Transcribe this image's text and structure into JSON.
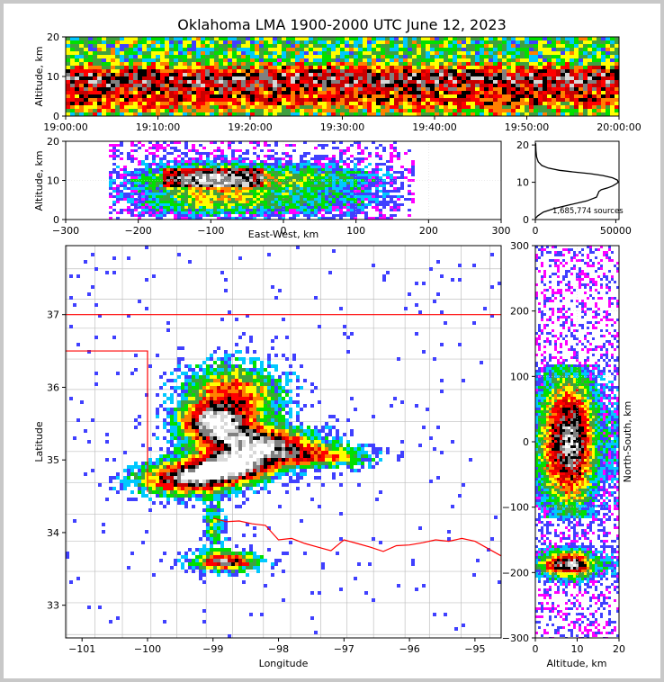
{
  "title": "Oklahoma LMA 1900-2000 UTC June 12, 2023",
  "colors": {
    "density_ramp": [
      "#ff00ff",
      "#4040ff",
      "#00c8ff",
      "#00e000",
      "#40a040",
      "#ffff00",
      "#ff8000",
      "#ff0000",
      "#c80000",
      "#000000",
      "#808080",
      "#d8d8d8",
      "#ffffff"
    ],
    "state_border": "#ff0000",
    "county_border": "#c0c0c0"
  },
  "chart_data": [
    {
      "name": "time-altitude",
      "type": "heatmap",
      "ylabel": "Altitude, km",
      "xlim": [
        "19:00:00",
        "20:00:00"
      ],
      "ylim": [
        0,
        20
      ],
      "xticks": [
        "19:00:00",
        "19:10:00",
        "19:20:00",
        "19:30:00",
        "19:40:00",
        "19:50:00",
        "20:00:00"
      ],
      "yticks": [
        "0",
        "10",
        "20"
      ]
    },
    {
      "name": "east-west-altitude",
      "type": "heatmap",
      "xlabel": "East-West, km",
      "ylabel": "Altitude, km",
      "xlim": [
        -300,
        300
      ],
      "ylim": [
        0,
        20
      ],
      "xticks": [
        "−300",
        "−200",
        "−100",
        "0",
        "100",
        "200",
        "300"
      ],
      "yticks": [
        "0",
        "10",
        "20"
      ]
    },
    {
      "name": "altitude-histogram",
      "type": "line",
      "xlim": [
        0,
        52000
      ],
      "ylim": [
        0,
        21
      ],
      "xticks": [
        "0",
        "50000"
      ],
      "yticks": [
        "0",
        "10",
        "20"
      ],
      "annotation": "1,685,774 sources",
      "series": [
        {
          "x": [
            0,
            1500,
            5000,
            12000,
            22000,
            32000,
            38000,
            39000,
            39500,
            41000,
            45000,
            48000,
            50000,
            51500,
            51000,
            48000,
            42000,
            34000,
            25000,
            15000,
            8000,
            4000,
            1800,
            800,
            400,
            250
          ],
          "y": [
            0.3,
            1,
            2,
            3,
            4,
            5,
            6,
            7,
            7.5,
            8,
            8.5,
            9,
            9.5,
            10,
            10.6,
            11.2,
            11.8,
            12.3,
            12.7,
            13.2,
            13.8,
            14.5,
            15.5,
            16.8,
            18.5,
            20.5
          ]
        }
      ]
    },
    {
      "name": "plan-view",
      "type": "heatmap",
      "xlabel": "Longitude",
      "ylabel": "Latitude",
      "xlim": [
        -101.25,
        -94.6
      ],
      "ylim": [
        32.55,
        37.95
      ],
      "xticks": [
        "−101",
        "−100",
        "−99",
        "−98",
        "−97",
        "−96",
        "−95"
      ],
      "yticks": [
        "33",
        "34",
        "35",
        "36",
        "37"
      ]
    },
    {
      "name": "altitude-north-south",
      "type": "heatmap",
      "xlabel": "Altitude, km",
      "ylabel": "North-South, km",
      "xlim": [
        0,
        20
      ],
      "ylim": [
        -300,
        300
      ],
      "xticks": [
        "0",
        "10",
        "20"
      ],
      "yticks": [
        "−300",
        "−200",
        "−100",
        "0",
        "100",
        "200",
        "300"
      ]
    }
  ]
}
